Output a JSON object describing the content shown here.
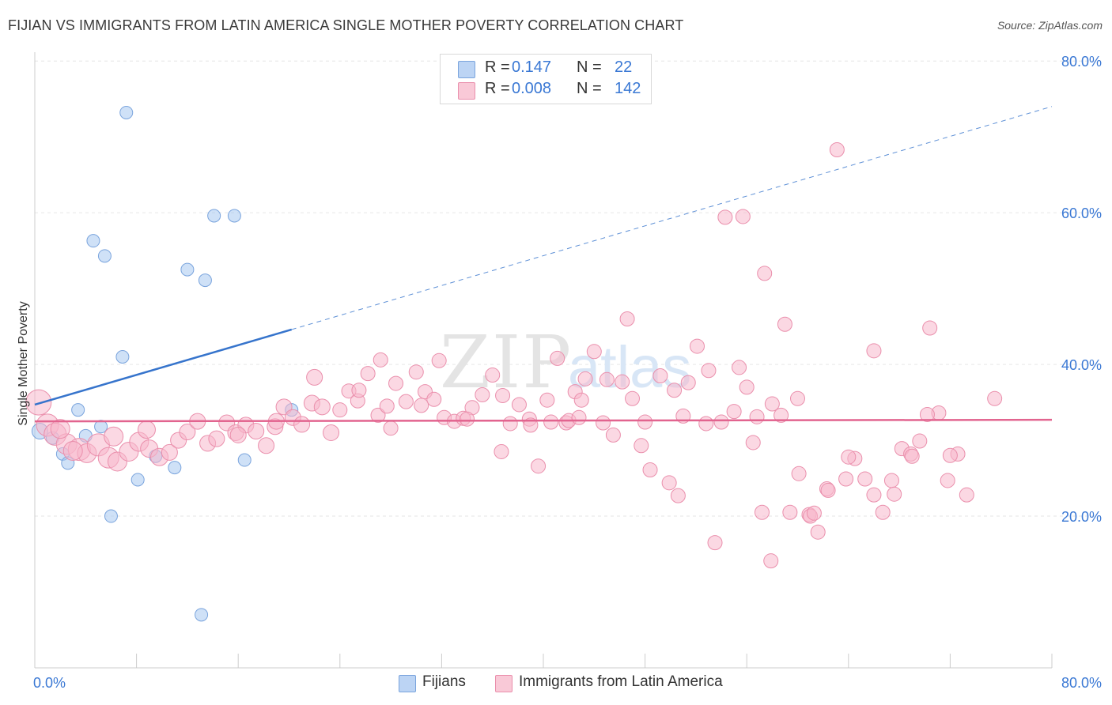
{
  "title": "FIJIAN VS IMMIGRANTS FROM LATIN AMERICA SINGLE MOTHER POVERTY CORRELATION CHART",
  "source": "Source: ZipAtlas.com",
  "watermark": {
    "zip": "ZIP",
    "atlas": "atlas"
  },
  "legend": {
    "rows": [
      {
        "r_label": "R =",
        "r_value": "0.147",
        "n_label": "N =",
        "n_value": "22"
      },
      {
        "r_label": "R =",
        "r_value": "0.008",
        "n_label": "N =",
        "n_value": "142"
      }
    ]
  },
  "bottom_legend": {
    "series1": "Fijians",
    "series2": "Immigrants from Latin America"
  },
  "chart_data": {
    "type": "scatter",
    "title": "FIJIAN VS IMMIGRANTS FROM LATIN AMERICA SINGLE MOTHER POVERTY CORRELATION CHART",
    "xlabel": "",
    "ylabel": "Single Mother Poverty",
    "xlim": [
      0,
      80
    ],
    "ylim": [
      0,
      82
    ],
    "x_tick_labels": [
      "0.0%",
      "80.0%"
    ],
    "y_ticks": [
      {
        "value": 20,
        "label": "20.0%"
      },
      {
        "value": 40,
        "label": "40.0%"
      },
      {
        "value": 60,
        "label": "60.0%"
      },
      {
        "value": 80,
        "label": "80.0%"
      }
    ],
    "grid": true,
    "series": [
      {
        "name": "Fijians",
        "color": "#a8c8f0",
        "edge": "#7aa4dd",
        "line_color": "#3674cc",
        "R": 0.147,
        "N": 22,
        "trend": {
          "x0": 0.0,
          "y0": 34.7,
          "x1": 20.2,
          "y1": 44.6,
          "x_end": 80.0,
          "y_end": 74.0
        },
        "points": [
          [
            0.4,
            31.2,
            10
          ],
          [
            1.4,
            30.3,
            8
          ],
          [
            3.4,
            34.0,
            8
          ],
          [
            2.2,
            28.2,
            8
          ],
          [
            4.0,
            30.6,
            8
          ],
          [
            5.2,
            31.8,
            8
          ],
          [
            4.6,
            56.3,
            8
          ],
          [
            5.5,
            54.3,
            8
          ],
          [
            6.0,
            20.0,
            8
          ],
          [
            6.9,
            41.0,
            8
          ],
          [
            7.2,
            73.2,
            8
          ],
          [
            8.1,
            24.8,
            8
          ],
          [
            9.5,
            27.9,
            8
          ],
          [
            11.0,
            26.4,
            8
          ],
          [
            12.0,
            52.5,
            8
          ],
          [
            13.4,
            51.1,
            8
          ],
          [
            14.1,
            59.6,
            8
          ],
          [
            15.7,
            59.6,
            8
          ],
          [
            16.5,
            27.4,
            8
          ],
          [
            13.1,
            7.0,
            8
          ],
          [
            20.2,
            34.0,
            8
          ],
          [
            2.6,
            27.0,
            8
          ]
        ]
      },
      {
        "name": "Immigrants from Latin America",
        "color": "#f7b8cc",
        "edge": "#ea8fac",
        "line_color": "#e2648f",
        "R": 0.008,
        "N": 142,
        "trend": {
          "x0": 0.0,
          "y0": 32.5,
          "x1": 80.0,
          "y1": 32.7
        },
        "points": [
          [
            0.3,
            35.0,
            16
          ],
          [
            1.0,
            32.0,
            14
          ],
          [
            1.6,
            30.8,
            14
          ],
          [
            2.5,
            29.5,
            13
          ],
          [
            3.5,
            28.8,
            14
          ],
          [
            4.1,
            28.3,
            12
          ],
          [
            5.0,
            29.4,
            14
          ],
          [
            5.8,
            27.7,
            13
          ],
          [
            6.5,
            27.2,
            12
          ],
          [
            7.4,
            28.5,
            12
          ],
          [
            8.2,
            29.8,
            12
          ],
          [
            9.0,
            28.9,
            11
          ],
          [
            9.8,
            27.8,
            11
          ],
          [
            10.6,
            28.4,
            10
          ],
          [
            11.3,
            30.0,
            10
          ],
          [
            12.0,
            31.1,
            10
          ],
          [
            12.8,
            32.5,
            10
          ],
          [
            13.6,
            29.6,
            10
          ],
          [
            14.3,
            30.2,
            10
          ],
          [
            15.1,
            32.3,
            10
          ],
          [
            15.8,
            31.0,
            10
          ],
          [
            16.6,
            32.0,
            10
          ],
          [
            17.4,
            31.2,
            10
          ],
          [
            18.2,
            29.3,
            10
          ],
          [
            18.9,
            31.8,
            10
          ],
          [
            19.6,
            34.4,
            10
          ],
          [
            20.3,
            33.0,
            10
          ],
          [
            21.0,
            32.1,
            10
          ],
          [
            21.8,
            34.9,
            10
          ],
          [
            22.6,
            34.4,
            10
          ],
          [
            23.3,
            31.0,
            10
          ],
          [
            24.0,
            34.0,
            9
          ],
          [
            24.7,
            36.5,
            9
          ],
          [
            25.4,
            35.2,
            9
          ],
          [
            26.2,
            38.8,
            9
          ],
          [
            27.0,
            33.3,
            9
          ],
          [
            27.7,
            34.5,
            9
          ],
          [
            28.4,
            37.5,
            9
          ],
          [
            29.2,
            35.1,
            9
          ],
          [
            30.0,
            39.0,
            9
          ],
          [
            30.7,
            36.4,
            9
          ],
          [
            31.4,
            35.4,
            9
          ],
          [
            32.2,
            33.0,
            9
          ],
          [
            33.0,
            32.5,
            9
          ],
          [
            33.7,
            32.9,
            9
          ],
          [
            34.4,
            34.3,
            9
          ],
          [
            35.2,
            36.0,
            9
          ],
          [
            36.0,
            38.6,
            9
          ],
          [
            36.7,
            28.5,
            9
          ],
          [
            37.4,
            32.2,
            9
          ],
          [
            38.1,
            34.7,
            9
          ],
          [
            38.9,
            32.8,
            9
          ],
          [
            39.6,
            26.6,
            9
          ],
          [
            40.3,
            35.3,
            9
          ],
          [
            41.1,
            40.8,
            9
          ],
          [
            41.8,
            32.3,
            9
          ],
          [
            42.5,
            36.4,
            9
          ],
          [
            43.3,
            38.1,
            9
          ],
          [
            44.0,
            41.7,
            9
          ],
          [
            44.7,
            32.3,
            9
          ],
          [
            45.5,
            30.7,
            9
          ],
          [
            46.2,
            37.7,
            9
          ],
          [
            47.0,
            35.5,
            9
          ],
          [
            47.7,
            29.3,
            9
          ],
          [
            48.4,
            26.1,
            9
          ],
          [
            49.2,
            38.5,
            9
          ],
          [
            49.9,
            24.4,
            9
          ],
          [
            50.6,
            22.7,
            9
          ],
          [
            51.4,
            37.6,
            9
          ],
          [
            52.1,
            42.4,
            9
          ],
          [
            52.8,
            32.2,
            9
          ],
          [
            53.5,
            16.5,
            9
          ],
          [
            54.3,
            59.4,
            9
          ],
          [
            55.0,
            33.8,
            9
          ],
          [
            55.7,
            59.5,
            9
          ],
          [
            56.5,
            29.7,
            9
          ],
          [
            57.2,
            20.5,
            9
          ],
          [
            57.9,
            14.1,
            9
          ],
          [
            58.7,
            33.3,
            9
          ],
          [
            59.4,
            20.5,
            9
          ],
          [
            60.1,
            25.6,
            9
          ],
          [
            60.9,
            20.2,
            9
          ],
          [
            61.6,
            17.9,
            9
          ],
          [
            62.3,
            23.6,
            9
          ],
          [
            63.1,
            68.3,
            9
          ],
          [
            63.8,
            24.9,
            9
          ],
          [
            64.5,
            27.6,
            9
          ],
          [
            65.3,
            24.9,
            9
          ],
          [
            66.0,
            22.8,
            9
          ],
          [
            66.7,
            20.5,
            9
          ],
          [
            67.4,
            24.7,
            9
          ],
          [
            68.2,
            28.9,
            9
          ],
          [
            68.9,
            28.2,
            9
          ],
          [
            69.6,
            29.9,
            9
          ],
          [
            70.4,
            44.8,
            9
          ],
          [
            71.1,
            33.6,
            9
          ],
          [
            71.8,
            24.7,
            9
          ],
          [
            72.6,
            28.2,
            9
          ],
          [
            73.3,
            22.8,
            9
          ],
          [
            75.5,
            35.5,
            9
          ],
          [
            2.0,
            31.5,
            12
          ],
          [
            6.2,
            30.5,
            12
          ],
          [
            8.8,
            31.4,
            11
          ],
          [
            16.0,
            30.7,
            10
          ],
          [
            19.0,
            32.5,
            10
          ],
          [
            22.0,
            38.3,
            10
          ],
          [
            25.5,
            36.6,
            9
          ],
          [
            27.2,
            40.6,
            9
          ],
          [
            28.0,
            31.6,
            9
          ],
          [
            30.4,
            34.6,
            9
          ],
          [
            31.8,
            40.5,
            9
          ],
          [
            34.0,
            32.8,
            9
          ],
          [
            36.8,
            35.9,
            9
          ],
          [
            39.0,
            32.0,
            9
          ],
          [
            40.6,
            32.4,
            9
          ],
          [
            42.0,
            32.6,
            9
          ],
          [
            43.0,
            35.3,
            9
          ],
          [
            45.0,
            38.0,
            9
          ],
          [
            46.6,
            46.0,
            9
          ],
          [
            48.0,
            32.4,
            9
          ],
          [
            50.3,
            36.6,
            9
          ],
          [
            51.0,
            33.2,
            9
          ],
          [
            53.0,
            39.2,
            9
          ],
          [
            54.0,
            32.4,
            9
          ],
          [
            55.4,
            39.6,
            9
          ],
          [
            56.0,
            37.0,
            9
          ],
          [
            57.4,
            52.0,
            9
          ],
          [
            58.0,
            34.8,
            9
          ],
          [
            59.0,
            45.3,
            9
          ],
          [
            60.0,
            35.5,
            9
          ],
          [
            61.0,
            20.0,
            9
          ],
          [
            61.3,
            20.4,
            9
          ],
          [
            62.4,
            23.4,
            9
          ],
          [
            64.0,
            27.8,
            9
          ],
          [
            66.0,
            41.8,
            9
          ],
          [
            67.6,
            22.9,
            9
          ],
          [
            69.0,
            27.9,
            9
          ],
          [
            70.2,
            33.4,
            9
          ],
          [
            72.0,
            28.0,
            9
          ],
          [
            42.8,
            33.0,
            9
          ],
          [
            56.8,
            33.1,
            9
          ],
          [
            3.0,
            28.6,
            12
          ]
        ]
      }
    ]
  }
}
